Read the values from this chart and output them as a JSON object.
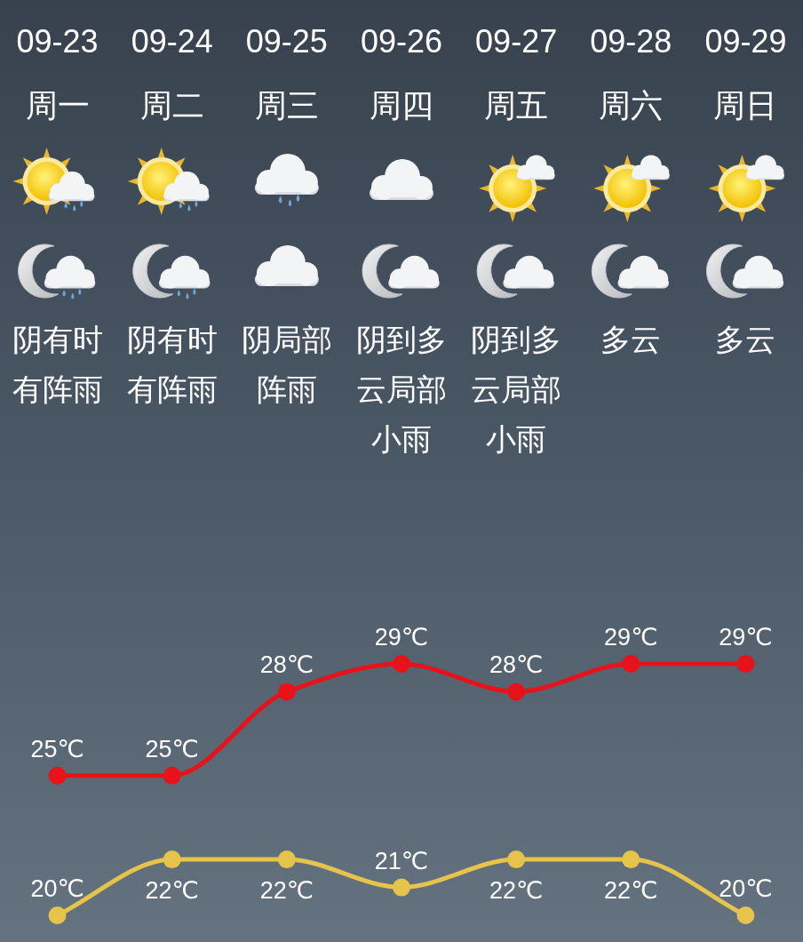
{
  "chart_data": {
    "type": "line",
    "categories": [
      "09-23",
      "09-24",
      "09-25",
      "09-26",
      "09-27",
      "09-28",
      "09-29"
    ],
    "series": [
      {
        "color": "#e8121b",
        "values": [
          25,
          25,
          28,
          29,
          28,
          29,
          29
        ],
        "value_labels": [
          "25℃",
          "25℃",
          "28℃",
          "29℃",
          "28℃",
          "29℃",
          "29℃"
        ]
      },
      {
        "color": "#e6c34a",
        "values": [
          20,
          22,
          22,
          21,
          22,
          22,
          20
        ],
        "value_labels": [
          "20℃",
          "22℃",
          "22℃",
          "21℃",
          "22℃",
          "22℃",
          "20℃"
        ]
      }
    ],
    "marker": "circle",
    "annotations": [
      "周一",
      "周二",
      "周三",
      "周四",
      "周五",
      "周六",
      "周日",
      "阴有时有阵雨",
      "阴有时有阵雨",
      "阴局部阵雨",
      "阴到多云局部小雨",
      "阴到多云局部小雨",
      "多云",
      "多云"
    ]
  }
}
